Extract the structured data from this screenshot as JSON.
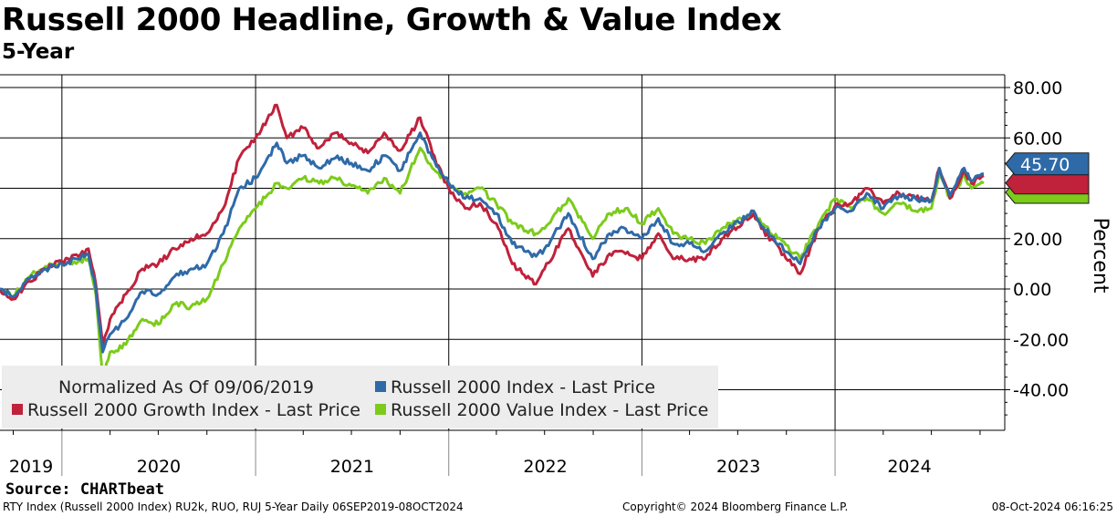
{
  "header": {
    "title": "Russell 2000 Headline, Growth & Value Index",
    "subtitle": "5-Year"
  },
  "footer": {
    "source": "Source: CHARTbeat",
    "left": "RTY Index (Russell 2000 Index) RU2k, RUO, RUJ 5-Year  Daily 06SEP2019-08OCT2024",
    "center": "Copyright© 2024 Bloomberg Finance L.P.",
    "right": "08-Oct-2024 06:16:25"
  },
  "chart_data": {
    "type": "line",
    "title": "Russell 2000 Headline, Growth & Value Index",
    "subtitle": "5-Year",
    "ylabel": "Percent",
    "ylim": [
      -55,
      84
    ],
    "yticks": [
      80,
      60,
      20,
      0,
      -20,
      -40
    ],
    "ytick_labels": [
      "80.00",
      "60.00",
      "20.00",
      "0.00",
      "-20.00",
      "-40.00"
    ],
    "x_start": "2019-09-06",
    "x_end": "2024-10-08",
    "year_labels": [
      "2019",
      "2020",
      "2021",
      "2022",
      "2023",
      "2024"
    ],
    "grid": true,
    "legend_position": "bottom-left",
    "legend_note": "Normalized As Of 09/06/2019",
    "colors": {
      "headline": "#2f6aa8",
      "growth": "#c0213b",
      "value": "#7ccb1a",
      "grid": "#000000",
      "legend_bg": "#ededed"
    },
    "last_value_tag": "45.70",
    "series": [
      {
        "key": "headline",
        "name": "Russell 2000 Index - Last Price",
        "points": [
          [
            "2019-09-06",
            0
          ],
          [
            "2019-10-01",
            -3
          ],
          [
            "2019-11-01",
            4
          ],
          [
            "2019-12-01",
            8
          ],
          [
            "2020-01-01",
            10
          ],
          [
            "2020-02-01",
            12
          ],
          [
            "2020-02-20",
            14
          ],
          [
            "2020-03-05",
            0
          ],
          [
            "2020-03-18",
            -25
          ],
          [
            "2020-04-01",
            -18
          ],
          [
            "2020-05-01",
            -12
          ],
          [
            "2020-06-01",
            -1
          ],
          [
            "2020-07-01",
            -2
          ],
          [
            "2020-08-01",
            5
          ],
          [
            "2020-09-01",
            8
          ],
          [
            "2020-10-01",
            10
          ],
          [
            "2020-11-01",
            22
          ],
          [
            "2020-12-01",
            40
          ],
          [
            "2021-01-01",
            44
          ],
          [
            "2021-02-10",
            58
          ],
          [
            "2021-03-01",
            50
          ],
          [
            "2021-04-01",
            53
          ],
          [
            "2021-05-01",
            48
          ],
          [
            "2021-06-01",
            52
          ],
          [
            "2021-07-01",
            50
          ],
          [
            "2021-08-01",
            47
          ],
          [
            "2021-09-01",
            53
          ],
          [
            "2021-10-01",
            47
          ],
          [
            "2021-11-08",
            62
          ],
          [
            "2021-12-01",
            52
          ],
          [
            "2022-01-01",
            42
          ],
          [
            "2022-02-01",
            36
          ],
          [
            "2022-03-01",
            36
          ],
          [
            "2022-04-01",
            30
          ],
          [
            "2022-05-01",
            18
          ],
          [
            "2022-06-15",
            13
          ],
          [
            "2022-07-01",
            16
          ],
          [
            "2022-08-15",
            30
          ],
          [
            "2022-09-30",
            12
          ],
          [
            "2022-11-01",
            22
          ],
          [
            "2022-12-01",
            24
          ],
          [
            "2023-01-01",
            20
          ],
          [
            "2023-02-01",
            28
          ],
          [
            "2023-03-01",
            18
          ],
          [
            "2023-04-01",
            18
          ],
          [
            "2023-05-01",
            15
          ],
          [
            "2023-06-01",
            22
          ],
          [
            "2023-07-31",
            31
          ],
          [
            "2023-08-15",
            25
          ],
          [
            "2023-10-27",
            10
          ],
          [
            "2023-12-01",
            24
          ],
          [
            "2024-01-01",
            32
          ],
          [
            "2024-02-01",
            31
          ],
          [
            "2024-03-01",
            38
          ],
          [
            "2024-04-01",
            32
          ],
          [
            "2024-05-01",
            37
          ],
          [
            "2024-06-01",
            36
          ],
          [
            "2024-07-01",
            35
          ],
          [
            "2024-07-16",
            48
          ],
          [
            "2024-08-05",
            37
          ],
          [
            "2024-09-01",
            48
          ],
          [
            "2024-09-15",
            43
          ],
          [
            "2024-10-08",
            45.7
          ]
        ]
      },
      {
        "key": "growth",
        "name": "Russell 2000 Growth Index - Last Price",
        "points": [
          [
            "2019-09-06",
            0
          ],
          [
            "2019-10-01",
            -4
          ],
          [
            "2019-11-01",
            3
          ],
          [
            "2019-12-01",
            8
          ],
          [
            "2020-01-01",
            11
          ],
          [
            "2020-02-01",
            13
          ],
          [
            "2020-02-20",
            16
          ],
          [
            "2020-03-05",
            2
          ],
          [
            "2020-03-18",
            -22
          ],
          [
            "2020-04-01",
            -12
          ],
          [
            "2020-05-01",
            -2
          ],
          [
            "2020-06-01",
            8
          ],
          [
            "2020-07-01",
            10
          ],
          [
            "2020-08-01",
            16
          ],
          [
            "2020-09-01",
            20
          ],
          [
            "2020-10-01",
            22
          ],
          [
            "2020-11-01",
            32
          ],
          [
            "2020-12-01",
            52
          ],
          [
            "2021-01-01",
            60
          ],
          [
            "2021-02-10",
            73
          ],
          [
            "2021-03-01",
            60
          ],
          [
            "2021-04-01",
            64
          ],
          [
            "2021-05-01",
            56
          ],
          [
            "2021-06-01",
            62
          ],
          [
            "2021-07-01",
            58
          ],
          [
            "2021-08-01",
            54
          ],
          [
            "2021-09-01",
            62
          ],
          [
            "2021-10-01",
            55
          ],
          [
            "2021-11-08",
            68
          ],
          [
            "2021-12-01",
            54
          ],
          [
            "2022-01-01",
            40
          ],
          [
            "2022-02-01",
            32
          ],
          [
            "2022-03-01",
            34
          ],
          [
            "2022-04-01",
            26
          ],
          [
            "2022-05-01",
            10
          ],
          [
            "2022-06-15",
            2
          ],
          [
            "2022-07-01",
            8
          ],
          [
            "2022-08-15",
            24
          ],
          [
            "2022-09-30",
            5
          ],
          [
            "2022-11-01",
            14
          ],
          [
            "2022-12-01",
            14
          ],
          [
            "2023-01-01",
            12
          ],
          [
            "2023-02-01",
            22
          ],
          [
            "2023-03-01",
            12
          ],
          [
            "2023-04-01",
            12
          ],
          [
            "2023-05-01",
            12
          ],
          [
            "2023-06-01",
            20
          ],
          [
            "2023-07-31",
            30
          ],
          [
            "2023-08-15",
            24
          ],
          [
            "2023-10-27",
            6
          ],
          [
            "2023-12-01",
            24
          ],
          [
            "2024-01-01",
            33
          ],
          [
            "2024-02-01",
            34
          ],
          [
            "2024-03-01",
            40
          ],
          [
            "2024-04-01",
            34
          ],
          [
            "2024-05-01",
            38
          ],
          [
            "2024-06-01",
            36
          ],
          [
            "2024-07-01",
            35
          ],
          [
            "2024-07-16",
            48
          ],
          [
            "2024-08-05",
            36
          ],
          [
            "2024-09-01",
            47
          ],
          [
            "2024-09-15",
            42
          ],
          [
            "2024-10-08",
            45
          ]
        ]
      },
      {
        "key": "value",
        "name": "Russell 2000 Value Index - Last Price",
        "points": [
          [
            "2019-09-06",
            0
          ],
          [
            "2019-10-01",
            -3
          ],
          [
            "2019-11-01",
            5
          ],
          [
            "2019-12-01",
            9
          ],
          [
            "2020-01-01",
            10
          ],
          [
            "2020-02-01",
            11
          ],
          [
            "2020-02-20",
            12
          ],
          [
            "2020-03-05",
            -2
          ],
          [
            "2020-03-18",
            -35
          ],
          [
            "2020-04-01",
            -25
          ],
          [
            "2020-05-01",
            -22
          ],
          [
            "2020-06-01",
            -12
          ],
          [
            "2020-07-01",
            -14
          ],
          [
            "2020-08-01",
            -6
          ],
          [
            "2020-09-01",
            -7
          ],
          [
            "2020-10-01",
            -4
          ],
          [
            "2020-11-01",
            10
          ],
          [
            "2020-12-01",
            24
          ],
          [
            "2021-01-01",
            32
          ],
          [
            "2021-02-10",
            42
          ],
          [
            "2021-03-01",
            40
          ],
          [
            "2021-04-01",
            44
          ],
          [
            "2021-05-01",
            42
          ],
          [
            "2021-06-01",
            44
          ],
          [
            "2021-07-01",
            41
          ],
          [
            "2021-08-01",
            38
          ],
          [
            "2021-09-01",
            44
          ],
          [
            "2021-10-01",
            38
          ],
          [
            "2021-11-08",
            56
          ],
          [
            "2021-12-01",
            48
          ],
          [
            "2022-01-01",
            42
          ],
          [
            "2022-02-01",
            38
          ],
          [
            "2022-03-01",
            40
          ],
          [
            "2022-04-01",
            34
          ],
          [
            "2022-05-01",
            26
          ],
          [
            "2022-06-15",
            22
          ],
          [
            "2022-07-01",
            24
          ],
          [
            "2022-08-15",
            36
          ],
          [
            "2022-09-30",
            20
          ],
          [
            "2022-11-01",
            30
          ],
          [
            "2022-12-01",
            32
          ],
          [
            "2023-01-01",
            26
          ],
          [
            "2023-02-01",
            32
          ],
          [
            "2023-03-01",
            22
          ],
          [
            "2023-04-01",
            20
          ],
          [
            "2023-05-01",
            18
          ],
          [
            "2023-06-01",
            24
          ],
          [
            "2023-07-31",
            30
          ],
          [
            "2023-08-15",
            26
          ],
          [
            "2023-10-27",
            12
          ],
          [
            "2023-12-01",
            26
          ],
          [
            "2024-01-01",
            36
          ],
          [
            "2024-02-01",
            32
          ],
          [
            "2024-03-01",
            36
          ],
          [
            "2024-04-01",
            30
          ],
          [
            "2024-05-01",
            34
          ],
          [
            "2024-06-01",
            31
          ],
          [
            "2024-07-01",
            32
          ],
          [
            "2024-07-16",
            46
          ],
          [
            "2024-08-05",
            36
          ],
          [
            "2024-09-01",
            45
          ],
          [
            "2024-09-15",
            40
          ],
          [
            "2024-10-08",
            42
          ]
        ]
      }
    ]
  }
}
